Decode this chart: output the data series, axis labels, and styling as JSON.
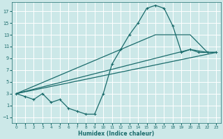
{
  "xlabel": "Humidex (Indice chaleur)",
  "bg_color": "#cce8e8",
  "grid_color": "#ffffff",
  "line_color": "#1a6b6b",
  "xlim": [
    -0.5,
    23.5
  ],
  "ylim": [
    -2,
    18.5
  ],
  "xticks": [
    0,
    1,
    2,
    3,
    4,
    5,
    6,
    7,
    8,
    9,
    10,
    11,
    12,
    13,
    14,
    15,
    16,
    17,
    18,
    19,
    20,
    21,
    22,
    23
  ],
  "yticks": [
    -1,
    1,
    3,
    5,
    7,
    9,
    11,
    13,
    15,
    17
  ],
  "series1_x": [
    0,
    1,
    2,
    3,
    4,
    5,
    6,
    7,
    8,
    9,
    10,
    11,
    12,
    13,
    14,
    15,
    16,
    17,
    18,
    19,
    20,
    21,
    22,
    23
  ],
  "series1_y": [
    3,
    2.5,
    2,
    3,
    1.5,
    2,
    0.5,
    0,
    -0.5,
    -0.5,
    3,
    8,
    10.5,
    13,
    15,
    17.5,
    18,
    17.5,
    14.5,
    10,
    10.5,
    10,
    10,
    10
  ],
  "series2_x": [
    0,
    23
  ],
  "series2_y": [
    3,
    10
  ],
  "series3_x": [
    0,
    16,
    20,
    22,
    23
  ],
  "series3_y": [
    3,
    13,
    13,
    10,
    10
  ],
  "series4_x": [
    0,
    16,
    20,
    22,
    23
  ],
  "series4_y": [
    3,
    9,
    10.5,
    10,
    10
  ]
}
